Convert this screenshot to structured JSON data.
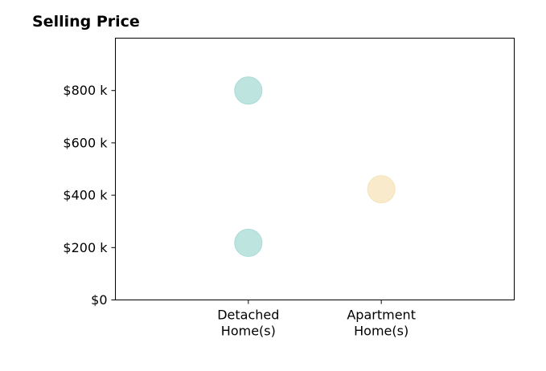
{
  "chart_data": {
    "type": "scatter",
    "title": "Selling Price",
    "xlabel": "",
    "ylabel": "",
    "categories": [
      [
        "Detached",
        "Home(s)"
      ],
      [
        "Apartment",
        "Home(s)"
      ]
    ],
    "ylim": [
      0,
      1000000
    ],
    "yticks": [
      0,
      200000,
      400000,
      600000,
      800000
    ],
    "ytick_labels": [
      "$0",
      "$200 k",
      "$400 k",
      "$600 k",
      "$800 k"
    ],
    "grid": false,
    "points": [
      {
        "category": 0,
        "value": 800000,
        "color": "#a8dbd6"
      },
      {
        "category": 0,
        "value": 218000,
        "color": "#a8dbd6"
      },
      {
        "category": 1,
        "value": 423000,
        "color": "#f5e3b8"
      }
    ]
  }
}
